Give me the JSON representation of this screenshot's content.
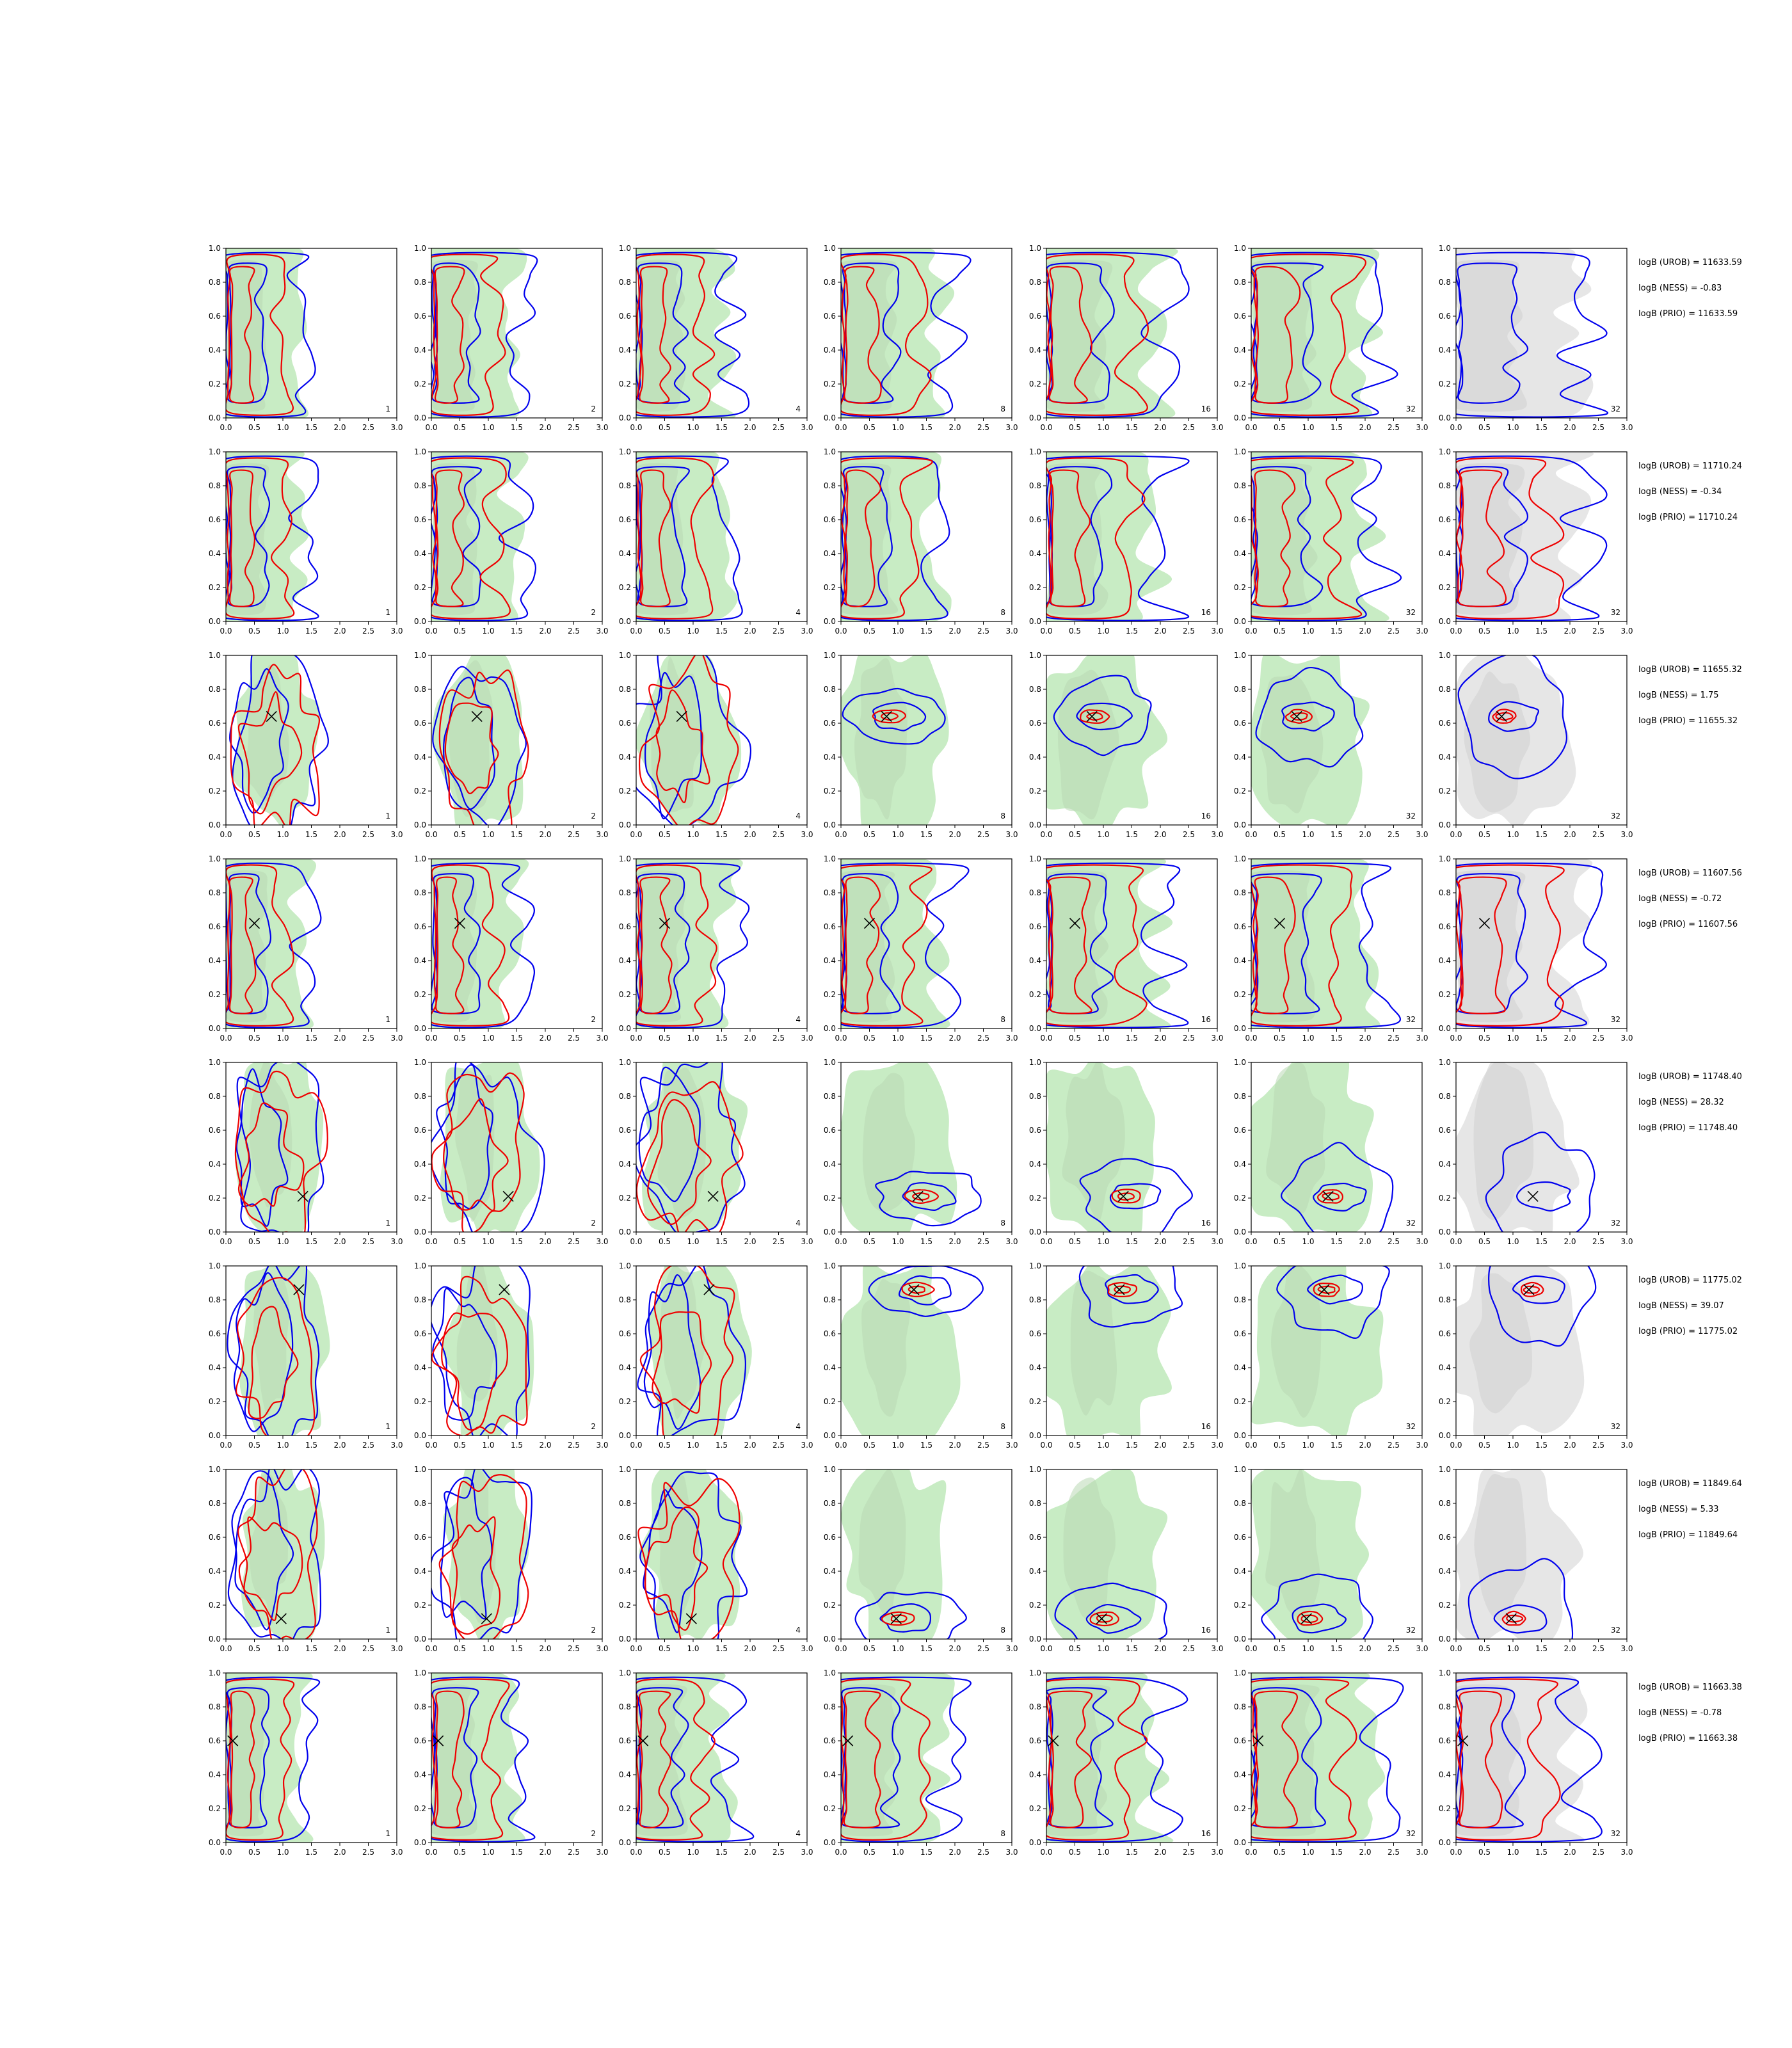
{
  "chart_data": {
    "type": "contour-grid",
    "xlim": [
      0.0,
      3.0
    ],
    "ylim": [
      0.0,
      1.0
    ],
    "x_ticks": [
      "0.0",
      "0.5",
      "1.0",
      "1.5",
      "2.0",
      "2.5",
      "3.0"
    ],
    "y_ticks": [
      "0.0",
      "0.2",
      "0.4",
      "0.6",
      "0.8",
      "1.0"
    ],
    "column_labels": [
      "1",
      "2",
      "4",
      "8",
      "16",
      "32",
      "32"
    ],
    "colors": {
      "prior_fill": "#c8ecc4",
      "reference_fill_light": "#cccccc",
      "reference_fill_dark": "#aaaaaa",
      "blue_contour": "#0000ee",
      "red_contour": "#ee0000",
      "truth_marker": "#000000",
      "axes": "#000000"
    },
    "rows": [
      {
        "truth": null,
        "logB": {
          "UROB": "logB (UROB) = 11633.59",
          "NESS": "logB (NESS) = -0.83",
          "PRIO": "logB (PRIO) = 11633.59"
        }
      },
      {
        "truth": null,
        "logB": {
          "UROB": "logB (UROB) = 11710.24",
          "NESS": "logB (NESS) = -0.34",
          "PRIO": "logB (PRIO) = 11710.24"
        }
      },
      {
        "truth": [
          0.8,
          0.64
        ],
        "logB": {
          "UROB": "logB (UROB) = 11655.32",
          "NESS": "logB (NESS) = 1.75",
          "PRIO": "logB (PRIO) = 11655.32"
        }
      },
      {
        "truth": [
          0.5,
          0.62
        ],
        "logB": {
          "UROB": "logB (UROB) = 11607.56",
          "NESS": "logB (NESS) = -0.72",
          "PRIO": "logB (PRIO) = 11607.56"
        }
      },
      {
        "truth": [
          1.35,
          0.21
        ],
        "logB": {
          "UROB": "logB (UROB) = 11748.40",
          "NESS": "logB (NESS) = 28.32",
          "PRIO": "logB (PRIO) = 11748.40"
        }
      },
      {
        "truth": [
          1.28,
          0.86
        ],
        "logB": {
          "UROB": "logB (UROB) = 11775.02",
          "NESS": "logB (NESS) = 39.07",
          "PRIO": "logB (PRIO) = 11775.02"
        }
      },
      {
        "truth": [
          0.97,
          0.12
        ],
        "logB": {
          "UROB": "logB (UROB) = 11849.64",
          "NESS": "logB (NESS) = 5.33",
          "PRIO": "logB (PRIO) = 11849.64"
        }
      },
      {
        "truth": [
          0.12,
          0.6
        ],
        "logB": {
          "UROB": "logB (UROB) = 11663.38",
          "NESS": "logB (NESS) = -0.78",
          "PRIO": "logB (PRIO) = 11663.38"
        }
      }
    ]
  }
}
